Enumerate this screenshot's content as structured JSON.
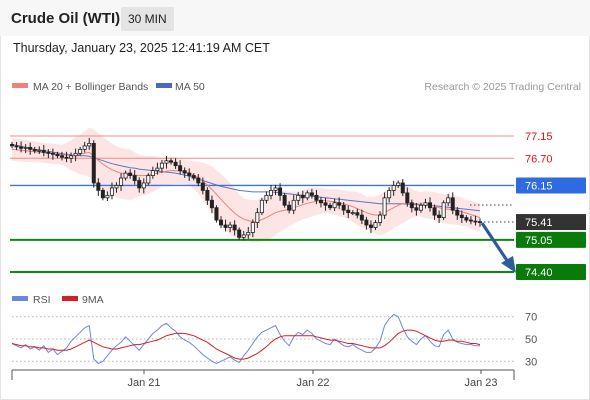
{
  "header": {
    "title": "Crude Oil (WTI)",
    "timeframe": "30 MIN",
    "timestamp": "Thursday, January 23, 2025 12:41:19 AM CET"
  },
  "colors": {
    "ma20": "#f08080",
    "ma50": "#4a69bd",
    "bollinger_fill": "#fde4e4",
    "resistance_line": "#f08b8b",
    "pivot_line": "#3d72e8",
    "support_line": "#0a8a0a",
    "support_badge": "#0a7a0a",
    "pivot_badge": "#2e6be0",
    "last_price_badge": "#333333",
    "arrow": "#2c5d9a",
    "rsi": "#6b86e0",
    "rsi_ma": "#d21f1f",
    "candle_body": "#222222"
  },
  "chart_data": [
    {
      "type": "candlestick",
      "title": "Crude Oil (WTI)",
      "legend": [
        {
          "name": "MA 20 + Bollinger Bands",
          "color": "#f08080"
        },
        {
          "name": "MA 50",
          "color": "#4a69bd"
        }
      ],
      "watermark": "Research © 2025 Trading Central",
      "x_axis_labels": [
        "Jan 21",
        "Jan 22",
        "Jan 23"
      ],
      "levels": [
        {
          "value": 77.15,
          "label": "77.15",
          "kind": "resistance"
        },
        {
          "value": 76.7,
          "label": "76.70",
          "kind": "resistance"
        },
        {
          "value": 76.15,
          "label": "76.15",
          "kind": "pivot"
        },
        {
          "value": 75.05,
          "label": "75.05",
          "kind": "support"
        },
        {
          "value": 74.4,
          "label": "74.40",
          "kind": "support"
        }
      ],
      "last_price": {
        "value": 75.41,
        "label": "75.41"
      },
      "forecast": "bearish arrow toward 74.40",
      "close": [
        76.95,
        76.93,
        76.9,
        76.92,
        76.88,
        76.85,
        76.86,
        76.82,
        76.8,
        76.78,
        76.75,
        76.72,
        76.7,
        76.75,
        76.8,
        76.88,
        76.95,
        77.0,
        76.2,
        76.05,
        75.9,
        75.95,
        76.1,
        76.15,
        76.3,
        76.4,
        76.35,
        76.25,
        76.1,
        76.2,
        76.35,
        76.45,
        76.5,
        76.6,
        76.65,
        76.62,
        76.55,
        76.45,
        76.4,
        76.35,
        76.3,
        76.2,
        76.05,
        75.85,
        75.7,
        75.45,
        75.35,
        75.3,
        75.35,
        75.25,
        75.1,
        75.15,
        75.2,
        75.4,
        75.6,
        75.85,
        75.95,
        76.05,
        76.1,
        75.95,
        75.75,
        75.65,
        75.85,
        75.95,
        75.9,
        76.0,
        75.95,
        75.85,
        75.8,
        75.75,
        75.7,
        75.8,
        75.75,
        75.65,
        75.6,
        75.6,
        75.55,
        75.45,
        75.35,
        75.3,
        75.4,
        75.55,
        75.9,
        76.05,
        76.15,
        76.2,
        76.0,
        75.8,
        75.7,
        75.65,
        75.75,
        75.8,
        75.7,
        75.55,
        75.5,
        75.8,
        75.9,
        75.65,
        75.55,
        75.5,
        75.45,
        75.43,
        75.42,
        75.41
      ],
      "ma20": [
        76.88,
        76.87,
        76.86,
        76.85,
        76.84,
        76.83,
        76.82,
        76.81,
        76.8,
        76.79,
        76.78,
        76.77,
        76.76,
        76.76,
        76.77,
        76.78,
        76.8,
        76.82,
        76.74,
        76.66,
        76.58,
        76.52,
        76.47,
        76.43,
        76.4,
        76.38,
        76.37,
        76.36,
        76.35,
        76.35,
        76.36,
        76.38,
        76.4,
        76.42,
        76.44,
        76.45,
        76.45,
        76.44,
        76.42,
        76.4,
        76.36,
        76.31,
        76.24,
        76.16,
        76.07,
        75.97,
        75.87,
        75.77,
        75.68,
        75.59,
        75.52,
        75.47,
        75.44,
        75.42,
        75.43,
        75.46,
        75.5,
        75.55,
        75.6,
        75.63,
        75.65,
        75.67,
        75.7,
        75.73,
        75.76,
        75.79,
        75.81,
        75.83,
        75.84,
        75.84,
        75.83,
        75.82,
        75.8,
        75.78,
        75.75,
        75.72,
        75.68,
        75.64,
        75.6,
        75.57,
        75.55,
        75.56,
        75.6,
        75.65,
        75.7,
        75.75,
        75.78,
        75.79,
        75.79,
        75.78,
        75.77,
        75.76,
        75.75,
        75.73,
        75.7,
        75.68,
        75.67,
        75.66,
        75.64,
        75.62,
        75.59,
        75.56,
        75.53,
        75.5
      ],
      "ma50": [
        76.98,
        76.96,
        76.94,
        76.92,
        76.9,
        76.88,
        76.87,
        76.85,
        76.84,
        76.82,
        76.81,
        76.79,
        76.78,
        76.77,
        76.76,
        76.75,
        76.75,
        76.74,
        76.71,
        76.68,
        76.65,
        76.62,
        76.59,
        76.57,
        76.55,
        76.53,
        76.51,
        76.5,
        76.48,
        76.47,
        76.46,
        76.45,
        76.44,
        76.43,
        76.42,
        76.41,
        76.4,
        76.38,
        76.36,
        76.34,
        76.31,
        76.28,
        76.25,
        76.22,
        76.19,
        76.16,
        76.13,
        76.11,
        76.09,
        76.07,
        76.05,
        76.04,
        76.03,
        76.02,
        76.02,
        76.02,
        76.02,
        76.02,
        76.01,
        76.0,
        75.99,
        75.98,
        75.97,
        75.96,
        75.95,
        75.94,
        75.93,
        75.92,
        75.91,
        75.9,
        75.89,
        75.88,
        75.87,
        75.86,
        75.85,
        75.84,
        75.83,
        75.82,
        75.81,
        75.8,
        75.79,
        75.78,
        75.78,
        75.78,
        75.78,
        75.78,
        75.78,
        75.77,
        75.77,
        75.76,
        75.76,
        75.75,
        75.75,
        75.74,
        75.73,
        75.72,
        75.71,
        75.7,
        75.69,
        75.68,
        75.67,
        75.66,
        75.65,
        75.64
      ]
    },
    {
      "type": "line",
      "legend": [
        {
          "name": "RSI",
          "color": "#6b86e0"
        },
        {
          "name": "9MA",
          "color": "#d21f1f"
        }
      ],
      "y_ticks": [
        30,
        50,
        70
      ],
      "ylim": [
        24,
        76
      ],
      "rsi": [
        46,
        44,
        42,
        45,
        41,
        43,
        40,
        44,
        38,
        41,
        36,
        39,
        42,
        48,
        52,
        56,
        60,
        62,
        32,
        28,
        30,
        35,
        40,
        44,
        47,
        52,
        48,
        44,
        40,
        45,
        50,
        55,
        58,
        62,
        64,
        60,
        57,
        52,
        49,
        47,
        44,
        40,
        36,
        33,
        30,
        28,
        30,
        32,
        34,
        31,
        29,
        35,
        40,
        46,
        52,
        56,
        58,
        60,
        62,
        54,
        48,
        44,
        52,
        56,
        54,
        58,
        55,
        50,
        48,
        46,
        45,
        50,
        47,
        44,
        43,
        45,
        42,
        40,
        38,
        38,
        42,
        48,
        62,
        68,
        72,
        70,
        60,
        52,
        48,
        45,
        50,
        53,
        48,
        44,
        43,
        54,
        58,
        50,
        47,
        46,
        45,
        45,
        44,
        44
      ],
      "rsi_ma": [
        46,
        45,
        44,
        44,
        43,
        43,
        42,
        42,
        41,
        41,
        40,
        40,
        40,
        41,
        43,
        45,
        47,
        49,
        47,
        45,
        43,
        42,
        41,
        41,
        42,
        43,
        44,
        45,
        45,
        46,
        47,
        48,
        49,
        51,
        53,
        54,
        55,
        55,
        55,
        54,
        53,
        51,
        49,
        47,
        44,
        41,
        39,
        37,
        35,
        33,
        32,
        32,
        33,
        35,
        37,
        40,
        43,
        47,
        50,
        52,
        53,
        53,
        53,
        53,
        53,
        53,
        53,
        52,
        51,
        50,
        49,
        49,
        48,
        47,
        46,
        46,
        45,
        44,
        43,
        42,
        42,
        42,
        44,
        47,
        51,
        55,
        57,
        58,
        58,
        57,
        55,
        53,
        51,
        49,
        48,
        48,
        49,
        49,
        48,
        48,
        47,
        46,
        46,
        45
      ]
    }
  ],
  "legend_labels": {
    "ma20": "MA 20 + Bollinger Bands",
    "ma50": "MA 50",
    "watermark": "Research © 2025 Trading Central",
    "rsi": "RSI",
    "rsi_ma": "9MA"
  }
}
